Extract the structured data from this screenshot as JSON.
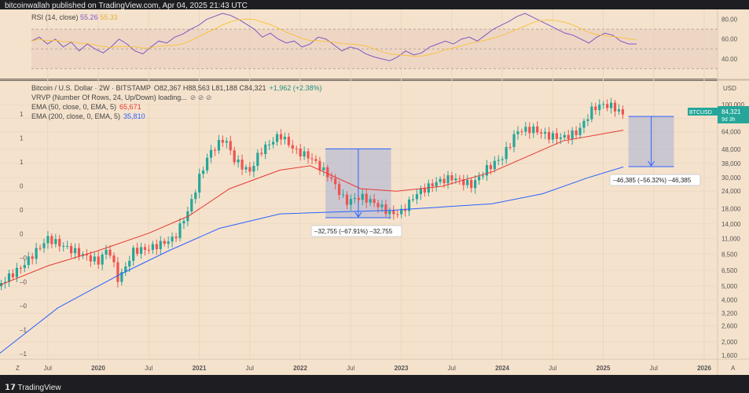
{
  "header": {
    "text": "bitcoinwallah published on TradingView.com, Apr 04, 2025 21:43 UTC"
  },
  "footer": {
    "logo_text": "TradingView"
  },
  "rsi_panel": {
    "label": "RSI (14, close)",
    "rsi_value": "55.26",
    "ma_value": "55.33",
    "ticks": [
      "80.00",
      "60.00",
      "40.00"
    ],
    "rsi_color": "#7e57c2",
    "ma_color": "#f6c443"
  },
  "price_legend": {
    "title": "Bitcoin / U.S. Dollar · 2W · BITSTAMP",
    "ohlc": "O82,367  H88,563  L81,188  C84,321",
    "change": "+1,962 (+2.38%)",
    "vrvp": "VRVP (Number Of Rows, 24, Up/Down) loading...",
    "ema50_label": "EMA (50, close, 0, EMA, 5)",
    "ema50_value": "65,671",
    "ema200_label": "EMA (200, close, 0, EMA, 5)",
    "ema200_value": "35,810"
  },
  "price_scale": {
    "currency": "USD",
    "ticks": [
      "100,000",
      "80,000",
      "64,000",
      "48,000",
      "38,000",
      "30,000",
      "24,000",
      "18,000",
      "14,000",
      "11,000",
      "8,500",
      "6,500",
      "5,000",
      "4,000",
      "3,200",
      "2,600",
      "2,000",
      "1,600"
    ],
    "tag_symbol": "BTCUSD",
    "tag_price": "84,321",
    "tag_time": "9d 3h"
  },
  "left_axis": {
    "ticks": [
      "1",
      "1",
      "1",
      "0",
      "0",
      "0",
      "–0",
      "–0",
      "–0",
      "–1",
      "–1"
    ]
  },
  "time_axis": {
    "ticks": [
      "Jul",
      "2020",
      "Jul",
      "2021",
      "Jul",
      "2022",
      "Jul",
      "2023",
      "Jul",
      "2024",
      "Jul",
      "2025",
      "Jul",
      "2026"
    ],
    "corner_left": "Z",
    "corner_right": "A"
  },
  "chart_data": {
    "type": "candlestick",
    "title": "Bitcoin / U.S. Dollar · 2W · BITSTAMP",
    "y_scale": "log",
    "ylim": [
      1500,
      130000
    ],
    "colors": {
      "up": "#26a69a",
      "down": "#ef5350",
      "ema50": "#e53935",
      "ema200": "#2962ff",
      "measure": "#2962ff"
    },
    "series": [
      {
        "name": "EMA (50, close, 0, EMA, 5)",
        "y": [
          5000,
          7000,
          9000,
          12000,
          16000,
          25000,
          34000,
          36500,
          25000,
          24000,
          26000,
          33000,
          55000,
          65671
        ]
      },
      {
        "name": "EMA (200, close, 0, EMA, 5)",
        "y": [
          1600,
          3500,
          6000,
          9000,
          13000,
          16500,
          17000,
          17500,
          18500,
          19500,
          23000,
          30000,
          35810
        ]
      }
    ],
    "annotations": [
      {
        "label": "–32,755 (–67.91%) –32,755",
        "from": 48235,
        "to": 15480
      },
      {
        "label": "–46,385 (–56.32%) –46,385",
        "from": 82367,
        "to": 35982
      }
    ]
  }
}
